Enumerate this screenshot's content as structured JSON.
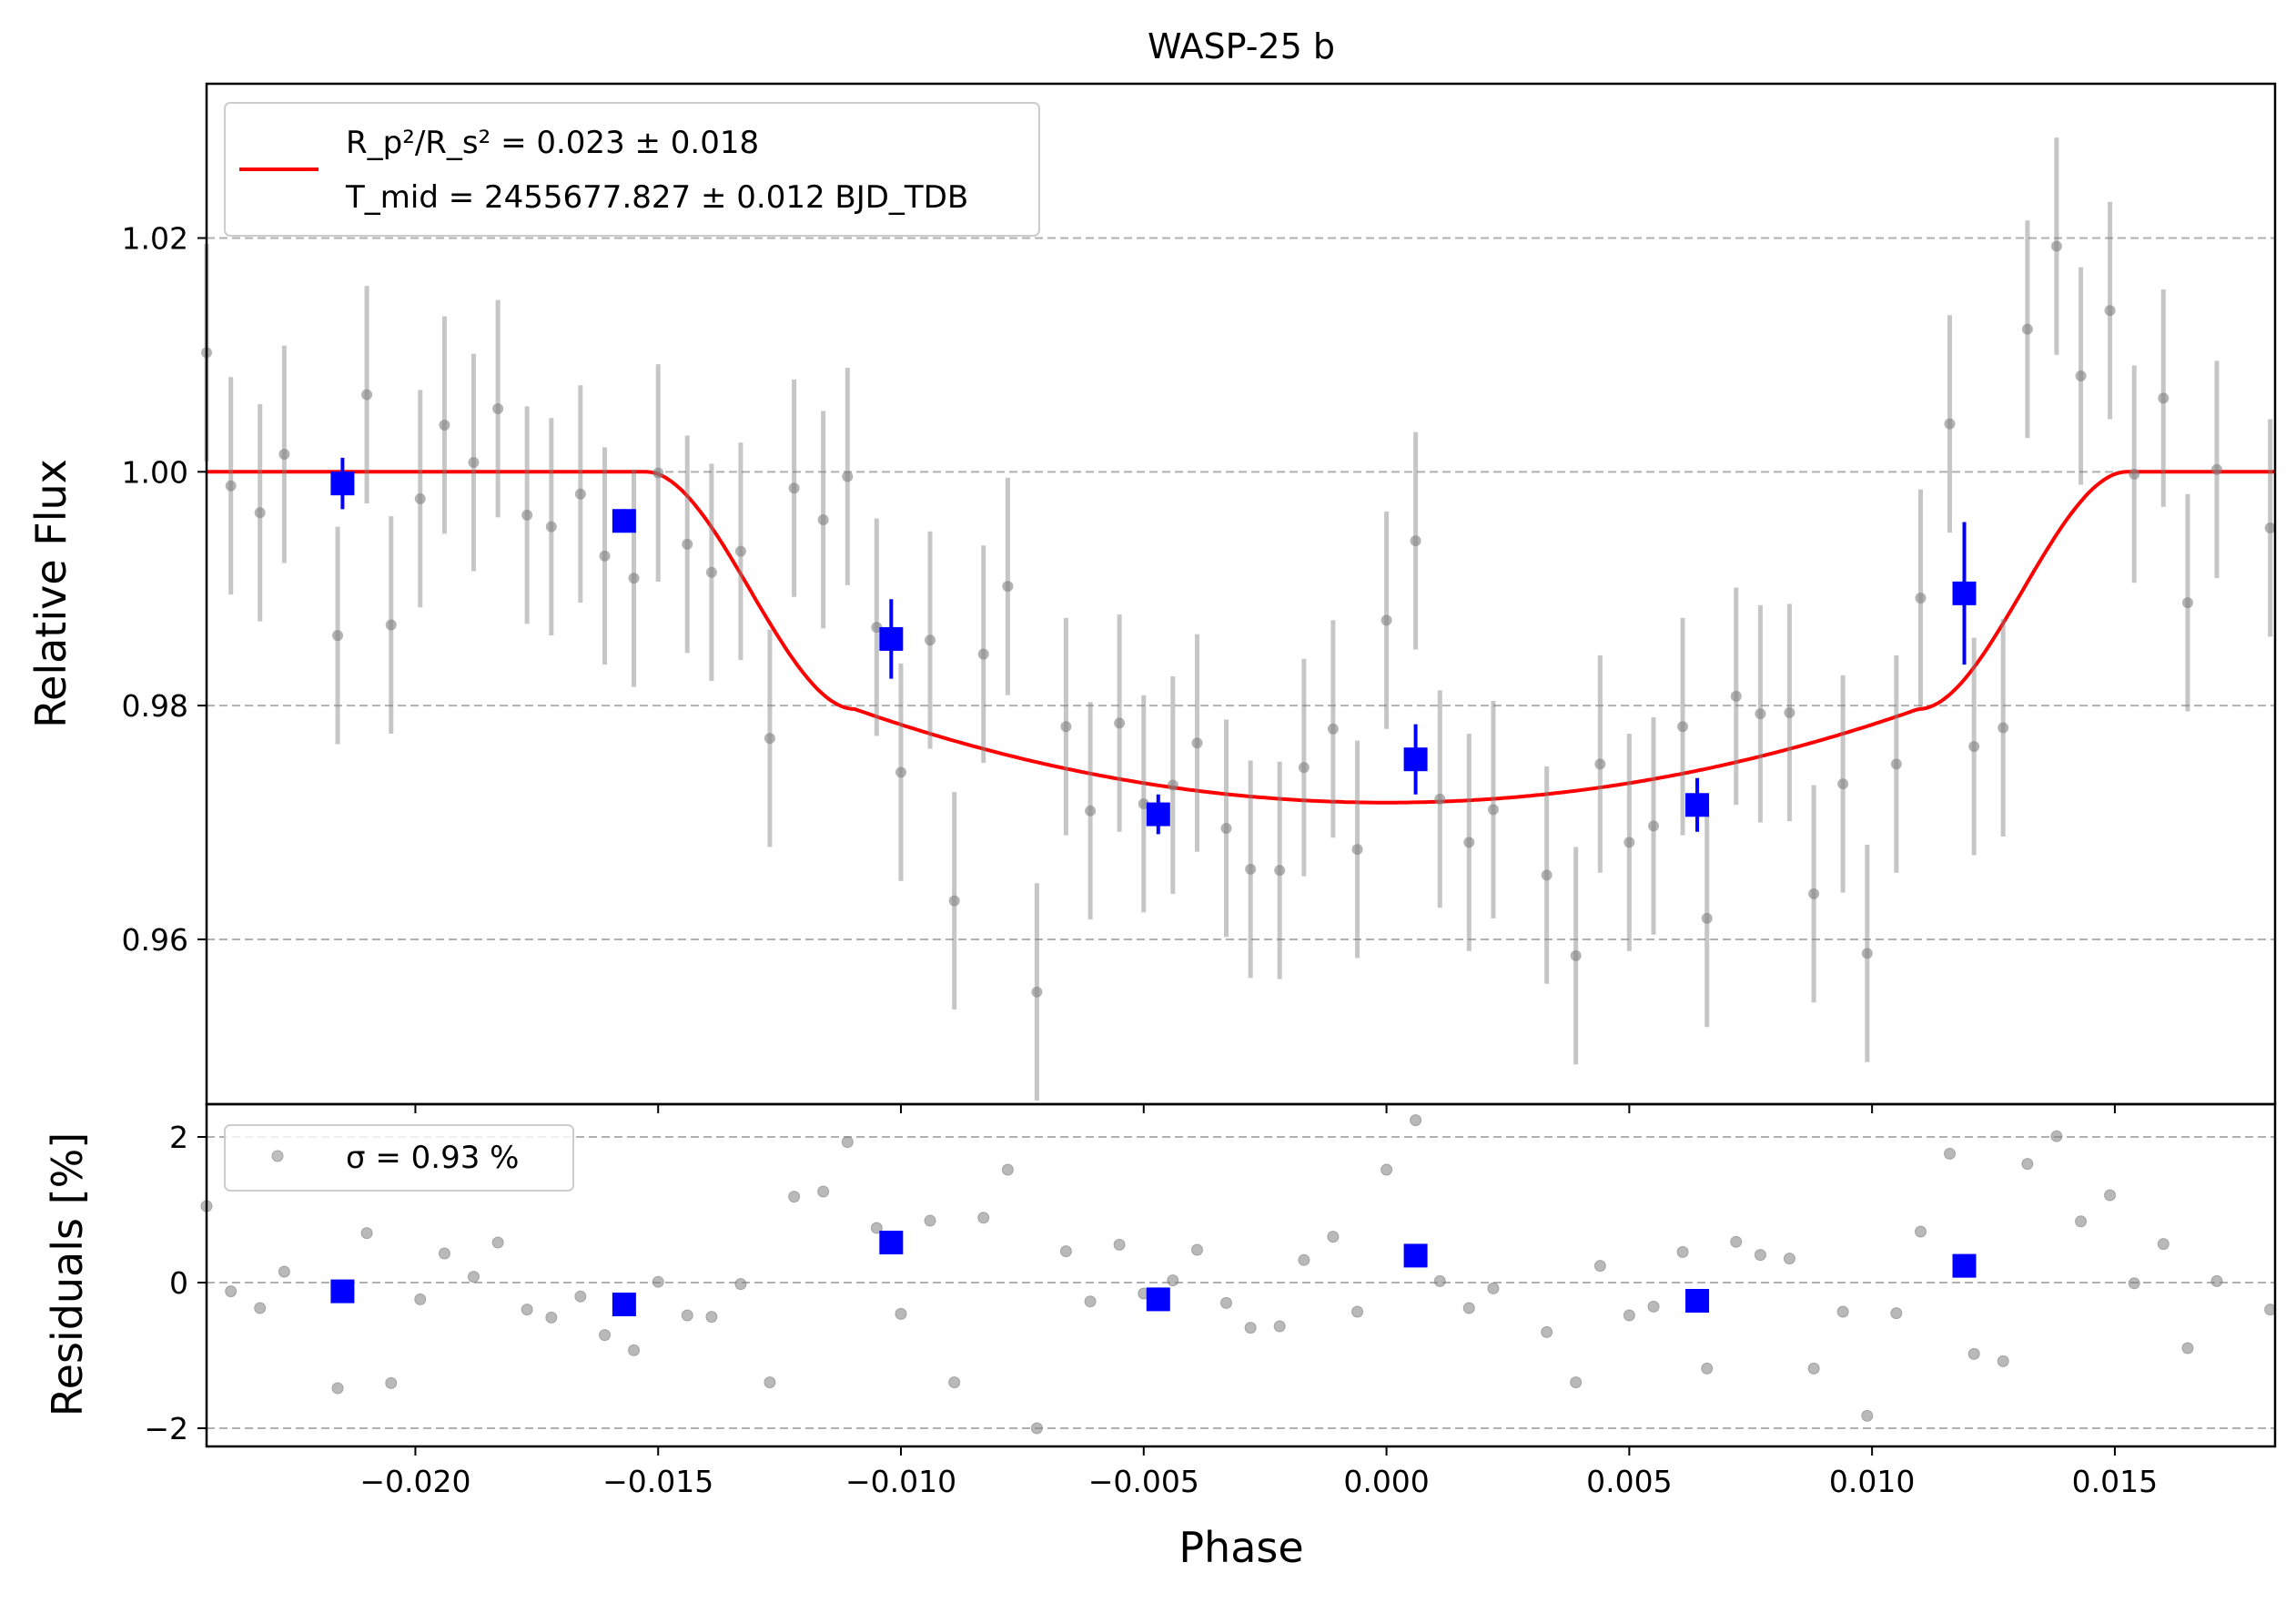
{
  "chart_data": [
    {
      "type": "scatter",
      "panel": "top",
      "title": "WASP-25 b",
      "xlabel": "",
      "ylabel": "Relative Flux",
      "xlim": [
        -0.0243,
        0.0183
      ],
      "ylim": [
        0.9459,
        1.0332
      ],
      "yticks": [
        0.96,
        0.98,
        1.0,
        1.02
      ],
      "ytick_labels": [
        "0.96",
        "0.98",
        "1.00",
        "1.02"
      ],
      "grid": "horizontal dashed",
      "legend": {
        "placement": "top-left",
        "line1": "R_p²/R_s² = 0.023 ± 0.018",
        "line2": "T_mid = 2455677.827 ± 0.012 BJD_TDB"
      },
      "colors": {
        "data": "#808080",
        "binned": "#0000ff",
        "model": "#ff0000"
      },
      "model_params": {
        "t14": 0.0305,
        "t23": 0.0219,
        "mid": 0.0,
        "depth_min": 0.9717,
        "depth_contact2": 0.9797
      },
      "series": [
        {
          "name": "data",
          "x": [
            -0.0243,
            -0.0238,
            -0.0232,
            -0.0227,
            -0.0216,
            -0.021,
            -0.0205,
            -0.0199,
            -0.0194,
            -0.0188,
            -0.0183,
            -0.0177,
            -0.0172,
            -0.0166,
            -0.0161,
            -0.0155,
            -0.015,
            -0.0144,
            -0.0139,
            -0.0133,
            -0.0127,
            -0.0122,
            -0.0116,
            -0.0111,
            -0.0105,
            -0.01,
            -0.0094,
            -0.0089,
            -0.0083,
            -0.0078,
            -0.0072,
            -0.0066,
            -0.0061,
            -0.0055,
            -0.005,
            -0.0044,
            -0.0039,
            -0.0033,
            -0.0028,
            -0.0022,
            -0.0017,
            -0.0011,
            -0.0006,
            0.0,
            0.0006,
            0.0011,
            0.0017,
            0.0022,
            0.0033,
            0.0039,
            0.0044,
            0.005,
            0.0055,
            0.0061,
            0.0066,
            0.0072,
            0.0077,
            0.0083,
            0.0088,
            0.0094,
            0.0099,
            0.0105,
            0.011,
            0.0116,
            0.0121,
            0.0127,
            0.0132,
            0.0138,
            0.0143,
            0.0149,
            0.0154,
            0.016,
            0.0165,
            0.0171,
            0.0182
          ],
          "y": [
            1.0102,
            0.9988,
            0.9965,
            1.0015,
            0.986,
            1.0066,
            0.9869,
            0.9977,
            1.004,
            1.0008,
            1.0054,
            0.9963,
            0.9953,
            0.9981,
            0.9928,
            0.9909,
            0.9999,
            0.9938,
            0.9914,
            0.9932,
            0.9772,
            0.9986,
            0.9959,
            0.9996,
            0.9867,
            0.9743,
            0.9856,
            0.9633,
            0.9844,
            0.9902,
            0.9555,
            0.9782,
            0.971,
            0.9785,
            0.9716,
            0.9732,
            0.9768,
            0.9695,
            0.966,
            0.9659,
            0.9747,
            0.978,
            0.9677,
            0.9873,
            0.9941,
            0.972,
            0.9683,
            0.9711,
            0.9655,
            0.9586,
            0.975,
            0.9683,
            0.9697,
            0.9782,
            0.9618,
            0.9808,
            0.9793,
            0.9794,
            0.9639,
            0.9733,
            0.9588,
            0.975,
            0.9892,
            1.0041,
            0.9765,
            0.9781,
            1.0122,
            1.0193,
            1.0082,
            1.0138,
            0.9998,
            1.0063,
            0.9888,
            1.0002,
            0.9952
          ],
          "yerr": 0.0093
        },
        {
          "name": "binned",
          "x": [
            -0.0215,
            -0.0157,
            -0.0102,
            -0.0047,
            0.0006,
            0.0064,
            0.0119
          ],
          "y": [
            0.999,
            0.9958,
            0.9857,
            0.9707,
            0.9754,
            0.9715,
            0.9896
          ],
          "yerr": [
            0.0022,
            0.001,
            0.0034,
            0.0017,
            0.003,
            0.0023,
            0.0061
          ]
        }
      ]
    },
    {
      "type": "scatter",
      "panel": "bottom",
      "xlabel": "Phase",
      "ylabel": "Residuals [%]",
      "xlim": [
        -0.0243,
        0.0183
      ],
      "ylim": [
        -2.25,
        2.45
      ],
      "xticks": [
        -0.02,
        -0.015,
        -0.01,
        -0.005,
        0.0,
        0.005,
        0.01,
        0.015
      ],
      "xtick_labels": [
        "−0.020",
        "−0.015",
        "−0.010",
        "−0.005",
        "0.000",
        "0.005",
        "0.010",
        "0.015"
      ],
      "yticks": [
        -2,
        0,
        2
      ],
      "ytick_labels": [
        "−2",
        "0",
        "2"
      ],
      "grid": "horizontal dashed",
      "legend": {
        "placement": "top-left",
        "label": "σ = 0.93 %"
      },
      "series": [
        {
          "name": "data",
          "x": [
            -0.0243,
            -0.0238,
            -0.0232,
            -0.0227,
            -0.0216,
            -0.021,
            -0.0205,
            -0.0199,
            -0.0194,
            -0.0188,
            -0.0183,
            -0.0177,
            -0.0172,
            -0.0166,
            -0.0161,
            -0.0155,
            -0.015,
            -0.0144,
            -0.0139,
            -0.0133,
            -0.0127,
            -0.0122,
            -0.0116,
            -0.0111,
            -0.0105,
            -0.01,
            -0.0094,
            -0.0089,
            -0.0083,
            -0.0078,
            -0.0072,
            -0.0066,
            -0.0061,
            -0.0055,
            -0.005,
            -0.0044,
            -0.0039,
            -0.0033,
            -0.0028,
            -0.0022,
            -0.0017,
            -0.0011,
            -0.0006,
            0.0,
            0.0006,
            0.0011,
            0.0017,
            0.0022,
            0.0033,
            0.0039,
            0.0044,
            0.005,
            0.0055,
            0.0061,
            0.0066,
            0.0072,
            0.0077,
            0.0083,
            0.0088,
            0.0094,
            0.0099,
            0.0105,
            0.011,
            0.0116,
            0.0121,
            0.0127,
            0.0132,
            0.0138,
            0.0143,
            0.0149,
            0.0154,
            0.016,
            0.0165,
            0.0171,
            0.0182
          ],
          "y": [
            1.05,
            -0.12,
            -0.35,
            0.15,
            -1.45,
            0.68,
            -1.38,
            -0.23,
            0.4,
            0.08,
            0.55,
            -0.37,
            -0.48,
            -0.19,
            -0.72,
            -0.93,
            0.01,
            -0.45,
            -0.47,
            -0.02,
            -1.37,
            1.18,
            1.25,
            1.93,
            0.75,
            -0.43,
            0.85,
            -1.37,
            0.89,
            1.55,
            -2.0,
            0.43,
            -0.26,
            0.52,
            -0.15,
            0.03,
            0.45,
            -0.28,
            -0.62,
            -0.6,
            0.31,
            0.63,
            -0.4,
            1.55,
            2.23,
            0.02,
            -0.35,
            -0.08,
            -0.68,
            -1.37,
            0.23,
            -0.45,
            -0.33,
            0.42,
            -1.18,
            0.56,
            0.38,
            0.33,
            -1.18,
            -0.4,
            -1.83,
            -0.42,
            0.7,
            1.77,
            -0.98,
            -1.08,
            1.63,
            2.01,
            0.84,
            1.2,
            -0.01,
            0.53,
            -0.9,
            0.02,
            -0.37
          ]
        },
        {
          "name": "binned",
          "x": [
            -0.0215,
            -0.0157,
            -0.0102,
            -0.0047,
            0.0006,
            0.0064,
            0.0119
          ],
          "y": [
            -0.12,
            -0.3,
            0.55,
            -0.23,
            0.37,
            -0.25,
            0.23
          ]
        }
      ]
    }
  ]
}
